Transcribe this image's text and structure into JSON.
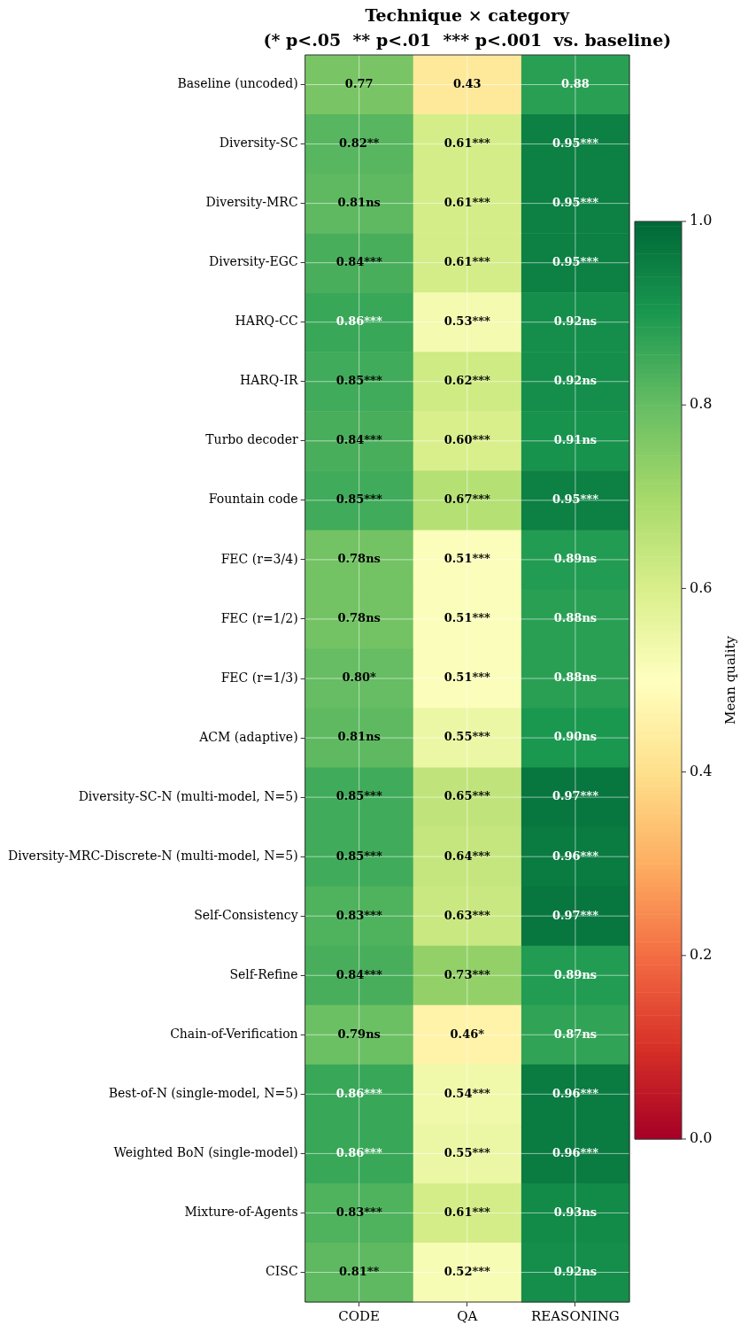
{
  "chart_data": {
    "type": "heatmap",
    "title": "Technique × category",
    "subtitle": "(* p<.05  ** p<.01  *** p<.001  vs. baseline)",
    "clabel": "Mean quality",
    "categories": [
      "CODE",
      "QA",
      "REASONING"
    ],
    "y_categories": [
      "Baseline (uncoded)",
      "Diversity-SC",
      "Diversity-MRC",
      "Diversity-EGC",
      "HARQ-CC",
      "HARQ-IR",
      "Turbo decoder",
      "Fountain code",
      "FEC (r=3/4)",
      "FEC (r=1/2)",
      "FEC (r=1/3)",
      "ACM (adaptive)",
      "Diversity-SC-N (multi-model, N=5)",
      "Diversity-MRC-Discrete-N (multi-model, N=5)",
      "Self-Consistency",
      "Self-Refine",
      "Chain-of-Verification",
      "Best-of-N (single-model, N=5)",
      "Weighted BoN (single-model)",
      "Mixture-of-Agents",
      "CISC"
    ],
    "cells": [
      [
        0.77,
        0.43,
        0.88
      ],
      [
        0.82,
        0.61,
        0.95
      ],
      [
        0.81,
        0.61,
        0.95
      ],
      [
        0.84,
        0.61,
        0.95
      ],
      [
        0.86,
        0.53,
        0.92
      ],
      [
        0.85,
        0.62,
        0.92
      ],
      [
        0.84,
        0.6,
        0.91
      ],
      [
        0.85,
        0.67,
        0.95
      ],
      [
        0.78,
        0.51,
        0.89
      ],
      [
        0.78,
        0.51,
        0.88
      ],
      [
        0.8,
        0.51,
        0.88
      ],
      [
        0.81,
        0.55,
        0.9
      ],
      [
        0.85,
        0.65,
        0.97
      ],
      [
        0.85,
        0.64,
        0.96
      ],
      [
        0.83,
        0.63,
        0.97
      ],
      [
        0.84,
        0.73,
        0.89
      ],
      [
        0.79,
        0.46,
        0.87
      ],
      [
        0.86,
        0.54,
        0.96
      ],
      [
        0.86,
        0.55,
        0.96
      ],
      [
        0.83,
        0.61,
        0.93
      ],
      [
        0.81,
        0.52,
        0.92
      ]
    ],
    "cell_labels": [
      [
        "0.77",
        "0.43",
        "0.88"
      ],
      [
        "0.82**",
        "0.61***",
        "0.95***"
      ],
      [
        "0.81ns",
        "0.61***",
        "0.95***"
      ],
      [
        "0.84***",
        "0.61***",
        "0.95***"
      ],
      [
        "0.86***",
        "0.53***",
        "0.92ns"
      ],
      [
        "0.85***",
        "0.62***",
        "0.92ns"
      ],
      [
        "0.84***",
        "0.60***",
        "0.91ns"
      ],
      [
        "0.85***",
        "0.67***",
        "0.95***"
      ],
      [
        "0.78ns",
        "0.51***",
        "0.89ns"
      ],
      [
        "0.78ns",
        "0.51***",
        "0.88ns"
      ],
      [
        "0.80*",
        "0.51***",
        "0.88ns"
      ],
      [
        "0.81ns",
        "0.55***",
        "0.90ns"
      ],
      [
        "0.85***",
        "0.65***",
        "0.97***"
      ],
      [
        "0.85***",
        "0.64***",
        "0.96***"
      ],
      [
        "0.83***",
        "0.63***",
        "0.97***"
      ],
      [
        "0.84***",
        "0.73***",
        "0.89ns"
      ],
      [
        "0.79ns",
        "0.46*",
        "0.87ns"
      ],
      [
        "0.86***",
        "0.54***",
        "0.96***"
      ],
      [
        "0.86***",
        "0.55***",
        "0.96***"
      ],
      [
        "0.83***",
        "0.61***",
        "0.93ns"
      ],
      [
        "0.81**",
        "0.52***",
        "0.92ns"
      ]
    ],
    "clim": [
      0,
      1
    ],
    "cticks": [
      {
        "value": 0,
        "label": "0.0"
      },
      {
        "value": 0.2,
        "label": "0.2"
      },
      {
        "value": 0.4,
        "label": "0.4"
      },
      {
        "value": 0.6,
        "label": "0.6"
      },
      {
        "value": 0.8,
        "label": "0.8"
      },
      {
        "value": 1,
        "label": "1.0"
      }
    ],
    "grid": true
  }
}
